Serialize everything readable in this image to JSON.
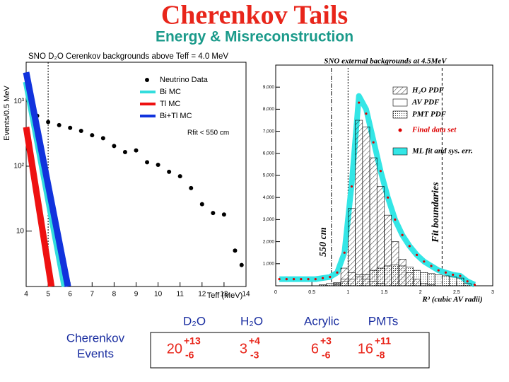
{
  "title": "Cherenkov Tails",
  "subtitle": "Energy & Misreconstruction",
  "chart_data": [
    {
      "type": "line",
      "title": "SNO D₂O Cerenkov backgrounds above Teff = 4.0 MeV",
      "x_label": "Teff (MeV)",
      "y_label": "Events/0.5 MeV",
      "annotation": "Rfit < 550 cm",
      "log_y": true,
      "legend": "top-right",
      "xlim": [
        4,
        14
      ],
      "xticks": [
        4,
        5,
        6,
        7,
        8,
        9,
        10,
        11,
        12,
        13,
        14
      ],
      "ylim": [
        1.4,
        4000
      ],
      "yticks": [
        10,
        {
          "value": 100,
          "label": "10²"
        },
        {
          "value": 1000,
          "label": "10³"
        }
      ],
      "cut": 5,
      "series": [
        {
          "name": "Neutrino Data",
          "color": "#000000",
          "style": "points",
          "x": [
            4.5,
            5.0,
            5.5,
            6.0,
            6.5,
            7.0,
            7.5,
            8.0,
            8.5,
            9.0,
            9.5,
            10.0,
            10.5,
            11.0,
            11.5,
            12.0,
            12.5,
            13.0,
            13.5,
            13.8
          ],
          "values": [
            600,
            480,
            430,
            390,
            350,
            300,
            270,
            205,
            165,
            175,
            115,
            105,
            82,
            70,
            46,
            26,
            19,
            18,
            5,
            3
          ]
        },
        {
          "name": "Bi MC",
          "color": "#33dddd",
          "style": "band",
          "x": [
            4,
            5.75
          ],
          "values": [
            2000,
            1.4
          ]
        },
        {
          "name": "Tl MC",
          "color": "#ee1111",
          "style": "band",
          "x": [
            4,
            5.15
          ],
          "values": [
            400,
            1.4
          ]
        },
        {
          "name": "Bi+Tl MC",
          "color": "#1133dd",
          "style": "band",
          "x": [
            4,
            5.9
          ],
          "values": [
            2800,
            1.4
          ]
        }
      ]
    },
    {
      "type": "histogram",
      "title": "SNO external backgrounds at 4.5MeV",
      "x_label": "R³ (cubic AV radii)",
      "annotations": [
        "550 cm",
        "Fit boundaries"
      ],
      "vlines": [
        0.77,
        1,
        2.3
      ],
      "legend": "top-right",
      "xlim": [
        0,
        3
      ],
      "xticks": [
        0,
        0.5,
        1,
        1.5,
        2,
        2.5,
        3
      ],
      "ylim": [
        0,
        10000
      ],
      "yticks": [
        {
          "value": 1000,
          "label": "1,000"
        },
        {
          "value": 2000,
          "label": "2,000"
        },
        {
          "value": 3000,
          "label": "3,000"
        },
        {
          "value": 4000,
          "label": "4,000"
        },
        {
          "value": 5000,
          "label": "5,000"
        },
        {
          "value": 6000,
          "label": "6,000"
        },
        {
          "value": 7000,
          "label": "7,000"
        },
        {
          "value": 8000,
          "label": "8,000"
        },
        {
          "value": 9000,
          "label": "9,000"
        }
      ],
      "bins": [
        0,
        0.1,
        0.2,
        0.3,
        0.4,
        0.5,
        0.6,
        0.7,
        0.8,
        0.9,
        1.0,
        1.1,
        1.2,
        1.3,
        1.4,
        1.5,
        1.6,
        1.7,
        1.8,
        1.9,
        2.0,
        2.1,
        2.2,
        2.3,
        2.4,
        2.5,
        2.6,
        2.7,
        2.8
      ],
      "series": [
        {
          "name": "H₂O PDF",
          "color": "#000000",
          "style": "hatch",
          "values": [
            0,
            0,
            0,
            0,
            0,
            0,
            0,
            0,
            100,
            800,
            3500,
            7500,
            7200,
            5800,
            4500,
            3200,
            2000,
            1200,
            600,
            300,
            100,
            50,
            0,
            0,
            0,
            0,
            0,
            0
          ]
        },
        {
          "name": "AV PDF",
          "color": "#000000",
          "style": "open",
          "values": [
            0,
            0,
            0,
            0,
            0,
            0,
            0,
            0,
            50,
            300,
            600,
            500,
            300,
            200,
            100,
            0,
            0,
            0,
            0,
            0,
            0,
            0,
            0,
            0,
            0,
            0,
            0,
            0
          ]
        },
        {
          "name": "PMT PDF",
          "color": "#000000",
          "style": "dots",
          "values": [
            0,
            0,
            0,
            0,
            0,
            0,
            50,
            100,
            150,
            200,
            300,
            400,
            500,
            700,
            800,
            900,
            950,
            900,
            850,
            700,
            600,
            550,
            500,
            450,
            400,
            350,
            100,
            0
          ]
        },
        {
          "name": "Final data set",
          "color": "#dd0000",
          "style": "points",
          "values": [
            300,
            300,
            300,
            300,
            300,
            300,
            350,
            400,
            600,
            1500,
            4500,
            8300,
            7800,
            6500,
            5200,
            4000,
            3000,
            2300,
            1800,
            1400,
            1100,
            900,
            700,
            600,
            500,
            450,
            200,
            50
          ]
        },
        {
          "name": "ML fit and sys. err.",
          "color": "#33e6e6",
          "style": "band",
          "values": [
            300,
            300,
            300,
            300,
            300,
            300,
            350,
            400,
            600,
            1500,
            4600,
            8600,
            8000,
            6600,
            5200,
            4000,
            3000,
            2300,
            1800,
            1400,
            1100,
            900,
            700,
            600,
            500,
            450,
            200,
            50
          ]
        }
      ]
    }
  ],
  "table": {
    "columns": [
      "D₂O",
      "H₂O",
      "Acrylic",
      "PMTs"
    ],
    "row_label": [
      "Cherenkov",
      "Events"
    ],
    "cells": [
      {
        "value": "20",
        "plus": "+13",
        "minus": "-6"
      },
      {
        "value": "3",
        "plus": "+4",
        "minus": "-3"
      },
      {
        "value": "6",
        "plus": "+3",
        "minus": "-6"
      },
      {
        "value": "16",
        "plus": "+11",
        "minus": "-8"
      }
    ]
  }
}
